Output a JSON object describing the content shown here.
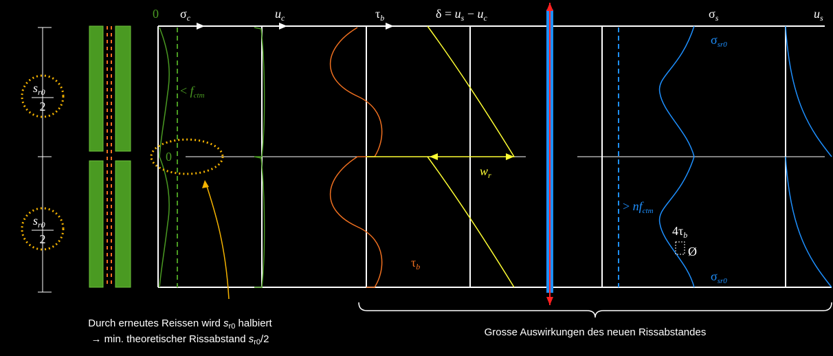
{
  "axis_labels": {
    "sigma_c": {
      "symbol": "σ",
      "sub": "c"
    },
    "u_c": {
      "symbol": "u",
      "sub": "c"
    },
    "tau_b": {
      "symbol": "τ",
      "sub": "b"
    },
    "delta": {
      "symbol": "δ = ",
      "u1": "u",
      "sub1": "s",
      "minus": " − ",
      "u2": "u",
      "sub2": "c"
    },
    "sigma_s": {
      "symbol": "σ",
      "sub": "s"
    },
    "u_s": {
      "symbol": "u",
      "sub": "s"
    }
  },
  "zero_top": "0",
  "zero_mid": "0",
  "annotations": {
    "f_ctm": {
      "prefix": "< ",
      "symbol": "f",
      "sub": "ctm"
    },
    "sigma_sr0_top": {
      "symbol": "σ",
      "sub": "sr0"
    },
    "sigma_sr0_bottom": {
      "symbol": "σ",
      "sub": "sr0"
    },
    "w_r": {
      "symbol": "w",
      "sub": "r"
    },
    "tau_b_lower": {
      "symbol": "τ",
      "sub": "b"
    },
    "nf_ctm": {
      "prefix": "> ",
      "symbol": "nf",
      "sub": "ctm"
    },
    "four_tau_b": {
      "symbol": "4τ",
      "sub": "b"
    },
    "diameter": "Ø"
  },
  "spacing": [
    {
      "symbol": "s",
      "sub": "r0",
      "denominator": "2"
    },
    {
      "symbol": "s",
      "sub": "r0",
      "denominator": "2"
    }
  ],
  "captions": {
    "left_line1": {
      "text": "Durch erneutes Reissen wird ",
      "symbol": "s",
      "sub": "r0",
      "suffix": " halbiert"
    },
    "left_line2": {
      "text": "→ min. theoretischer Rissabstand ",
      "symbol": "s",
      "sub": "r0",
      "suffix": "/2"
    },
    "right": "Grosse Auswirkungen des neuen Rissabstandes"
  }
}
